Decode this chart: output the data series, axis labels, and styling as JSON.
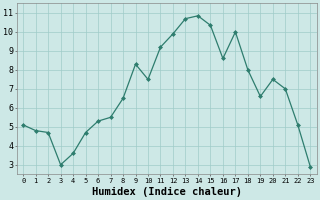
{
  "x": [
    0,
    1,
    2,
    3,
    4,
    5,
    6,
    7,
    8,
    9,
    10,
    11,
    12,
    13,
    14,
    15,
    16,
    17,
    18,
    19,
    20,
    21,
    22,
    23
  ],
  "y": [
    5.1,
    4.8,
    4.7,
    3.0,
    3.6,
    4.7,
    5.3,
    5.5,
    6.5,
    8.3,
    7.5,
    9.2,
    9.9,
    10.7,
    10.85,
    10.35,
    8.6,
    10.0,
    8.0,
    6.6,
    7.5,
    7.0,
    5.1,
    2.9
  ],
  "line_color": "#2e7d6e",
  "marker": "D",
  "marker_size": 2.0,
  "bg_color": "#cde8e6",
  "grid_color": "#a0ccc9",
  "xlabel": "Humidex (Indice chaleur)",
  "xlabel_fontsize": 7.5,
  "ylabel_ticks": [
    3,
    4,
    5,
    6,
    7,
    8,
    9,
    10,
    11
  ],
  "xticks": [
    0,
    1,
    2,
    3,
    4,
    5,
    6,
    7,
    8,
    9,
    10,
    11,
    12,
    13,
    14,
    15,
    16,
    17,
    18,
    19,
    20,
    21,
    22,
    23
  ],
  "ylim": [
    2.5,
    11.5
  ],
  "xlim": [
    -0.5,
    23.5
  ],
  "tick_fontsize": 5.0,
  "ytick_fontsize": 6.0
}
